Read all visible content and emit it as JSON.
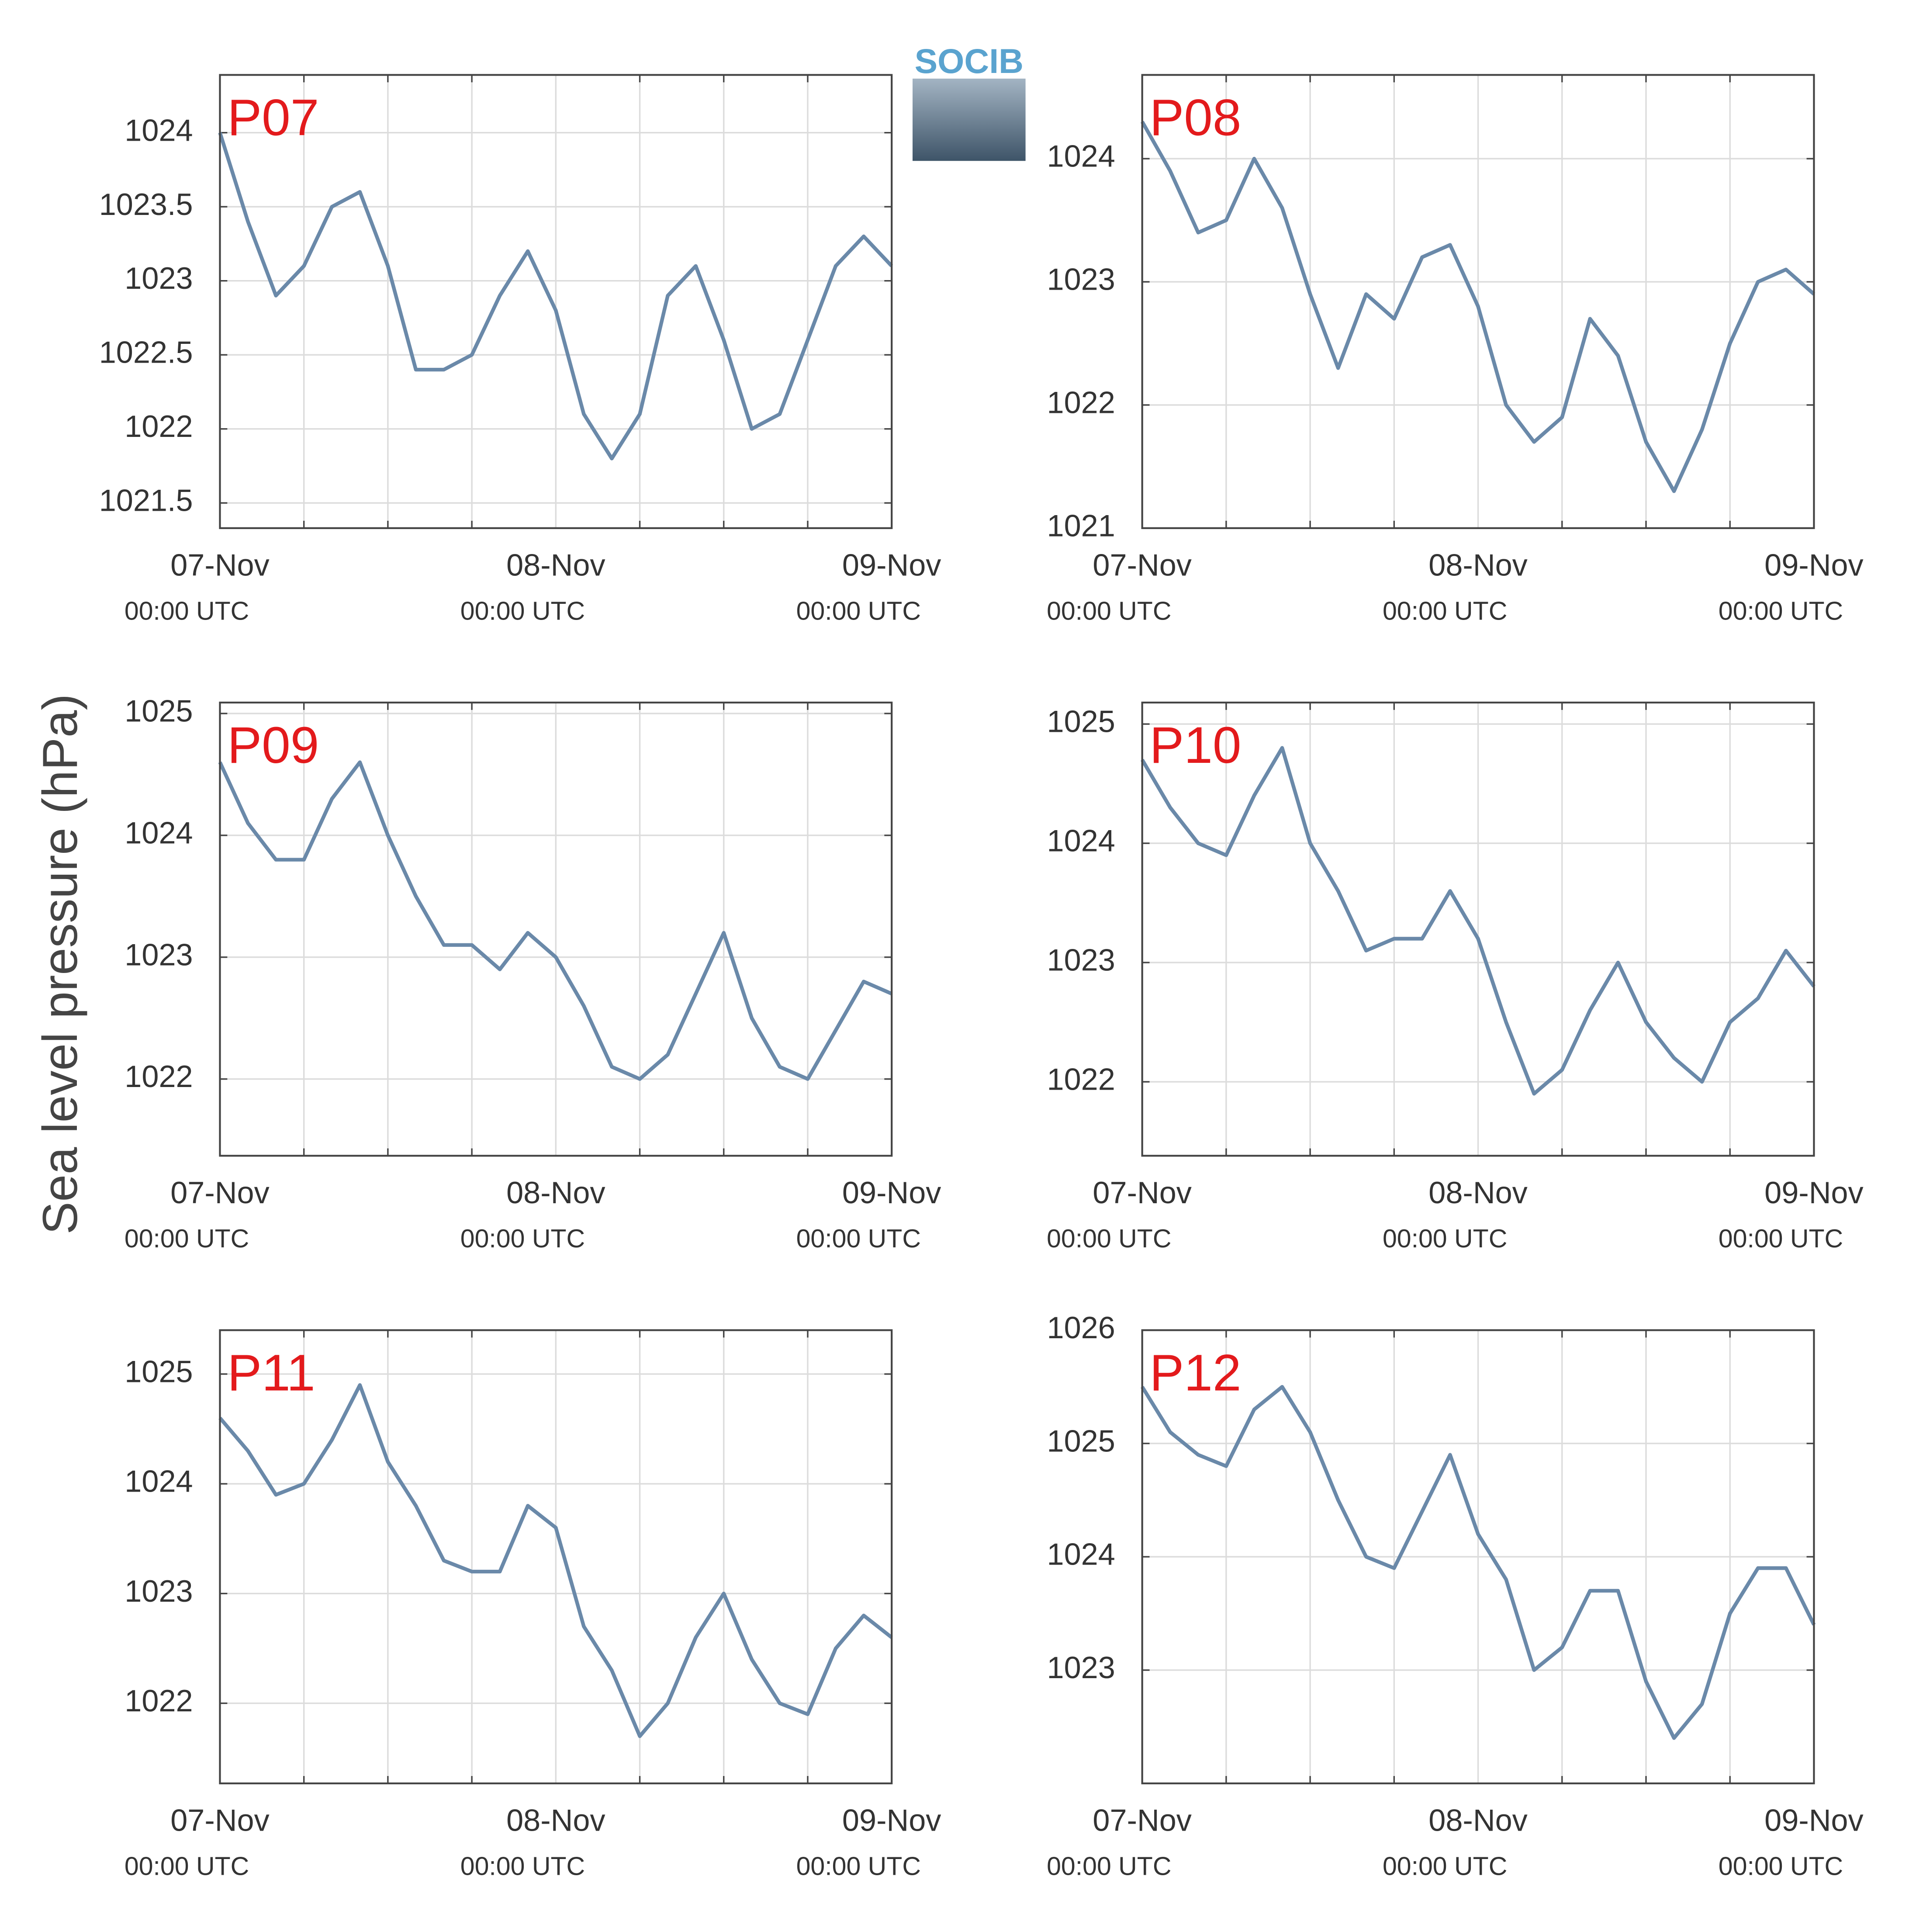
{
  "ylabel": "Sea level pressure (hPa)",
  "logo": "SOCIB",
  "chart_data": [
    {
      "type": "line",
      "title": "P07",
      "x": [
        "07-Nov 00:00",
        "07-Nov 02:00",
        "07-Nov 04:00",
        "07-Nov 06:00",
        "07-Nov 08:00",
        "07-Nov 10:00",
        "07-Nov 12:00",
        "07-Nov 14:00",
        "07-Nov 16:00",
        "07-Nov 18:00",
        "07-Nov 20:00",
        "07-Nov 22:00",
        "08-Nov 00:00",
        "08-Nov 02:00",
        "08-Nov 04:00",
        "08-Nov 06:00",
        "08-Nov 08:00",
        "08-Nov 10:00",
        "08-Nov 12:00",
        "08-Nov 14:00",
        "08-Nov 16:00",
        "08-Nov 18:00",
        "08-Nov 20:00",
        "08-Nov 22:00",
        "09-Nov 00:00"
      ],
      "series": [
        {
          "color": "#6a89a9",
          "values": [
            1024.0,
            1023.4,
            1022.9,
            1023.1,
            1023.5,
            1023.6,
            1023.1,
            1022.4,
            1022.4,
            1022.5,
            1022.9,
            1023.2,
            1022.8,
            1022.1,
            1021.8,
            1022.1,
            1022.9,
            1023.1,
            1022.6,
            1022.0,
            1022.1,
            1022.6,
            1023.1,
            1023.3,
            1023.1
          ]
        }
      ],
      "xlim": [
        "07-Nov 00:00",
        "09-Nov 00:00"
      ],
      "xticks": [
        {
          "value": "07-Nov 00:00",
          "label": [
            "07-Nov",
            "00:00 UTC"
          ]
        },
        {
          "value": "08-Nov 00:00",
          "label": [
            "08-Nov",
            "00:00 UTC"
          ]
        },
        {
          "value": "09-Nov 00:00",
          "label": [
            "09-Nov",
            "00:00 UTC"
          ]
        }
      ],
      "xminor": [
        "07-Nov 06:00",
        "07-Nov 12:00",
        "07-Nov 18:00",
        "08-Nov 06:00",
        "08-Nov 12:00",
        "08-Nov 18:00"
      ],
      "ylim": [
        1021.33,
        1024.39
      ],
      "yticks": [
        1021.5,
        1022,
        1022.5,
        1023,
        1023.5,
        1024
      ],
      "grid": true
    },
    {
      "type": "line",
      "title": "P08",
      "x": [
        "07-Nov 00:00",
        "07-Nov 02:00",
        "07-Nov 04:00",
        "07-Nov 06:00",
        "07-Nov 08:00",
        "07-Nov 10:00",
        "07-Nov 12:00",
        "07-Nov 14:00",
        "07-Nov 16:00",
        "07-Nov 18:00",
        "07-Nov 20:00",
        "07-Nov 22:00",
        "08-Nov 00:00",
        "08-Nov 02:00",
        "08-Nov 04:00",
        "08-Nov 06:00",
        "08-Nov 08:00",
        "08-Nov 10:00",
        "08-Nov 12:00",
        "08-Nov 14:00",
        "08-Nov 16:00",
        "08-Nov 18:00",
        "08-Nov 20:00",
        "08-Nov 22:00",
        "09-Nov 00:00"
      ],
      "series": [
        {
          "color": "#6a89a9",
          "values": [
            1024.3,
            1023.9,
            1023.4,
            1023.5,
            1024.0,
            1023.6,
            1022.9,
            1022.3,
            1022.9,
            1022.7,
            1023.2,
            1023.3,
            1022.8,
            1022.0,
            1021.7,
            1021.9,
            1022.7,
            1022.4,
            1021.7,
            1021.3,
            1021.8,
            1022.5,
            1023.0,
            1023.1,
            1022.9
          ]
        }
      ],
      "xlim": [
        "07-Nov 00:00",
        "09-Nov 00:00"
      ],
      "xticks": [
        {
          "value": "07-Nov 00:00",
          "label": [
            "07-Nov",
            "00:00 UTC"
          ]
        },
        {
          "value": "08-Nov 00:00",
          "label": [
            "08-Nov",
            "00:00 UTC"
          ]
        },
        {
          "value": "09-Nov 00:00",
          "label": [
            "09-Nov",
            "00:00 UTC"
          ]
        }
      ],
      "xminor": [
        "07-Nov 06:00",
        "07-Nov 12:00",
        "07-Nov 18:00",
        "08-Nov 06:00",
        "08-Nov 12:00",
        "08-Nov 18:00"
      ],
      "ylim": [
        1021,
        1024.68
      ],
      "yticks": [
        1021,
        1022,
        1023,
        1024
      ],
      "grid": true
    },
    {
      "type": "line",
      "title": "P09",
      "x": [
        "07-Nov 00:00",
        "07-Nov 02:00",
        "07-Nov 04:00",
        "07-Nov 06:00",
        "07-Nov 08:00",
        "07-Nov 10:00",
        "07-Nov 12:00",
        "07-Nov 14:00",
        "07-Nov 16:00",
        "07-Nov 18:00",
        "07-Nov 20:00",
        "07-Nov 22:00",
        "08-Nov 00:00",
        "08-Nov 02:00",
        "08-Nov 04:00",
        "08-Nov 06:00",
        "08-Nov 08:00",
        "08-Nov 10:00",
        "08-Nov 12:00",
        "08-Nov 14:00",
        "08-Nov 16:00",
        "08-Nov 18:00",
        "08-Nov 20:00",
        "08-Nov 22:00",
        "09-Nov 00:00"
      ],
      "series": [
        {
          "color": "#6a89a9",
          "values": [
            1024.6,
            1024.1,
            1023.8,
            1023.8,
            1024.3,
            1024.6,
            1024.0,
            1023.5,
            1023.1,
            1023.1,
            1022.9,
            1023.2,
            1023.0,
            1022.6,
            1022.1,
            1022.0,
            1022.2,
            1022.7,
            1023.2,
            1022.5,
            1022.1,
            1022.0,
            1022.4,
            1022.8,
            1022.7
          ]
        }
      ],
      "xlim": [
        "07-Nov 00:00",
        "09-Nov 00:00"
      ],
      "xticks": [
        {
          "value": "07-Nov 00:00",
          "label": [
            "07-Nov",
            "00:00 UTC"
          ]
        },
        {
          "value": "08-Nov 00:00",
          "label": [
            "08-Nov",
            "00:00 UTC"
          ]
        },
        {
          "value": "09-Nov 00:00",
          "label": [
            "09-Nov",
            "00:00 UTC"
          ]
        }
      ],
      "xminor": [
        "07-Nov 06:00",
        "07-Nov 12:00",
        "07-Nov 18:00",
        "08-Nov 06:00",
        "08-Nov 12:00",
        "08-Nov 18:00"
      ],
      "ylim": [
        1021.37,
        1025.09
      ],
      "yticks": [
        1022,
        1023,
        1024,
        1025
      ],
      "grid": true
    },
    {
      "type": "line",
      "title": "P10",
      "x": [
        "07-Nov 00:00",
        "07-Nov 02:00",
        "07-Nov 04:00",
        "07-Nov 06:00",
        "07-Nov 08:00",
        "07-Nov 10:00",
        "07-Nov 12:00",
        "07-Nov 14:00",
        "07-Nov 16:00",
        "07-Nov 18:00",
        "07-Nov 20:00",
        "07-Nov 22:00",
        "08-Nov 00:00",
        "08-Nov 02:00",
        "08-Nov 04:00",
        "08-Nov 06:00",
        "08-Nov 08:00",
        "08-Nov 10:00",
        "08-Nov 12:00",
        "08-Nov 14:00",
        "08-Nov 16:00",
        "08-Nov 18:00",
        "08-Nov 20:00",
        "08-Nov 22:00",
        "09-Nov 00:00"
      ],
      "series": [
        {
          "color": "#6a89a9",
          "values": [
            1024.7,
            1024.3,
            1024.0,
            1023.9,
            1024.4,
            1024.8,
            1024.0,
            1023.6,
            1023.1,
            1023.2,
            1023.2,
            1023.6,
            1023.2,
            1022.5,
            1021.9,
            1022.1,
            1022.6,
            1023.0,
            1022.5,
            1022.2,
            1022.0,
            1022.5,
            1022.7,
            1023.1,
            1022.8
          ]
        }
      ],
      "xlim": [
        "07-Nov 00:00",
        "09-Nov 00:00"
      ],
      "xticks": [
        {
          "value": "07-Nov 00:00",
          "label": [
            "07-Nov",
            "00:00 UTC"
          ]
        },
        {
          "value": "08-Nov 00:00",
          "label": [
            "08-Nov",
            "00:00 UTC"
          ]
        },
        {
          "value": "09-Nov 00:00",
          "label": [
            "09-Nov",
            "00:00 UTC"
          ]
        }
      ],
      "xminor": [
        "07-Nov 06:00",
        "07-Nov 12:00",
        "07-Nov 18:00",
        "08-Nov 06:00",
        "08-Nov 12:00",
        "08-Nov 18:00"
      ],
      "ylim": [
        1021.38,
        1025.18
      ],
      "yticks": [
        1022,
        1023,
        1024,
        1025
      ],
      "grid": true
    },
    {
      "type": "line",
      "title": "P11",
      "x": [
        "07-Nov 00:00",
        "07-Nov 02:00",
        "07-Nov 04:00",
        "07-Nov 06:00",
        "07-Nov 08:00",
        "07-Nov 10:00",
        "07-Nov 12:00",
        "07-Nov 14:00",
        "07-Nov 16:00",
        "07-Nov 18:00",
        "07-Nov 20:00",
        "07-Nov 22:00",
        "08-Nov 00:00",
        "08-Nov 02:00",
        "08-Nov 04:00",
        "08-Nov 06:00",
        "08-Nov 08:00",
        "08-Nov 10:00",
        "08-Nov 12:00",
        "08-Nov 14:00",
        "08-Nov 16:00",
        "08-Nov 18:00",
        "08-Nov 20:00",
        "08-Nov 22:00",
        "09-Nov 00:00"
      ],
      "series": [
        {
          "color": "#6a89a9",
          "values": [
            1024.6,
            1024.3,
            1023.9,
            1024.0,
            1024.4,
            1024.9,
            1024.2,
            1023.8,
            1023.3,
            1023.2,
            1023.2,
            1023.8,
            1023.6,
            1022.7,
            1022.3,
            1021.7,
            1022.0,
            1022.6,
            1023.0,
            1022.4,
            1022.0,
            1021.9,
            1022.5,
            1022.8,
            1022.6
          ]
        }
      ],
      "xlim": [
        "07-Nov 00:00",
        "09-Nov 00:00"
      ],
      "xticks": [
        {
          "value": "07-Nov 00:00",
          "label": [
            "07-Nov",
            "00:00 UTC"
          ]
        },
        {
          "value": "08-Nov 00:00",
          "label": [
            "08-Nov",
            "00:00 UTC"
          ]
        },
        {
          "value": "09-Nov 00:00",
          "label": [
            "09-Nov",
            "00:00 UTC"
          ]
        }
      ],
      "xminor": [
        "07-Nov 06:00",
        "07-Nov 12:00",
        "07-Nov 18:00",
        "08-Nov 06:00",
        "08-Nov 12:00",
        "08-Nov 18:00"
      ],
      "ylim": [
        1021.27,
        1025.4
      ],
      "yticks": [
        1022,
        1023,
        1024,
        1025
      ],
      "grid": true
    },
    {
      "type": "line",
      "title": "P12",
      "x": [
        "07-Nov 00:00",
        "07-Nov 02:00",
        "07-Nov 04:00",
        "07-Nov 06:00",
        "07-Nov 08:00",
        "07-Nov 10:00",
        "07-Nov 12:00",
        "07-Nov 14:00",
        "07-Nov 16:00",
        "07-Nov 18:00",
        "07-Nov 20:00",
        "07-Nov 22:00",
        "08-Nov 00:00",
        "08-Nov 02:00",
        "08-Nov 04:00",
        "08-Nov 06:00",
        "08-Nov 08:00",
        "08-Nov 10:00",
        "08-Nov 12:00",
        "08-Nov 14:00",
        "08-Nov 16:00",
        "08-Nov 18:00",
        "08-Nov 20:00",
        "08-Nov 22:00",
        "09-Nov 00:00"
      ],
      "series": [
        {
          "color": "#6a89a9",
          "values": [
            1025.5,
            1025.1,
            1024.9,
            1024.8,
            1025.3,
            1025.5,
            1025.1,
            1024.5,
            1024.0,
            1023.9,
            1024.4,
            1024.9,
            1024.2,
            1023.8,
            1023.0,
            1023.2,
            1023.7,
            1023.7,
            1022.9,
            1022.4,
            1022.7,
            1023.5,
            1023.9,
            1023.9,
            1023.4
          ]
        }
      ],
      "xlim": [
        "07-Nov 00:00",
        "09-Nov 00:00"
      ],
      "xticks": [
        {
          "value": "07-Nov 00:00",
          "label": [
            "07-Nov",
            "00:00 UTC"
          ]
        },
        {
          "value": "08-Nov 00:00",
          "label": [
            "08-Nov",
            "00:00 UTC"
          ]
        },
        {
          "value": "09-Nov 00:00",
          "label": [
            "09-Nov",
            "00:00 UTC"
          ]
        }
      ],
      "xminor": [
        "07-Nov 06:00",
        "07-Nov 12:00",
        "07-Nov 18:00",
        "08-Nov 06:00",
        "08-Nov 12:00",
        "08-Nov 18:00"
      ],
      "ylim": [
        1022.0,
        1026
      ],
      "yticks": [
        1023,
        1024,
        1025,
        1026
      ],
      "grid": true
    }
  ]
}
